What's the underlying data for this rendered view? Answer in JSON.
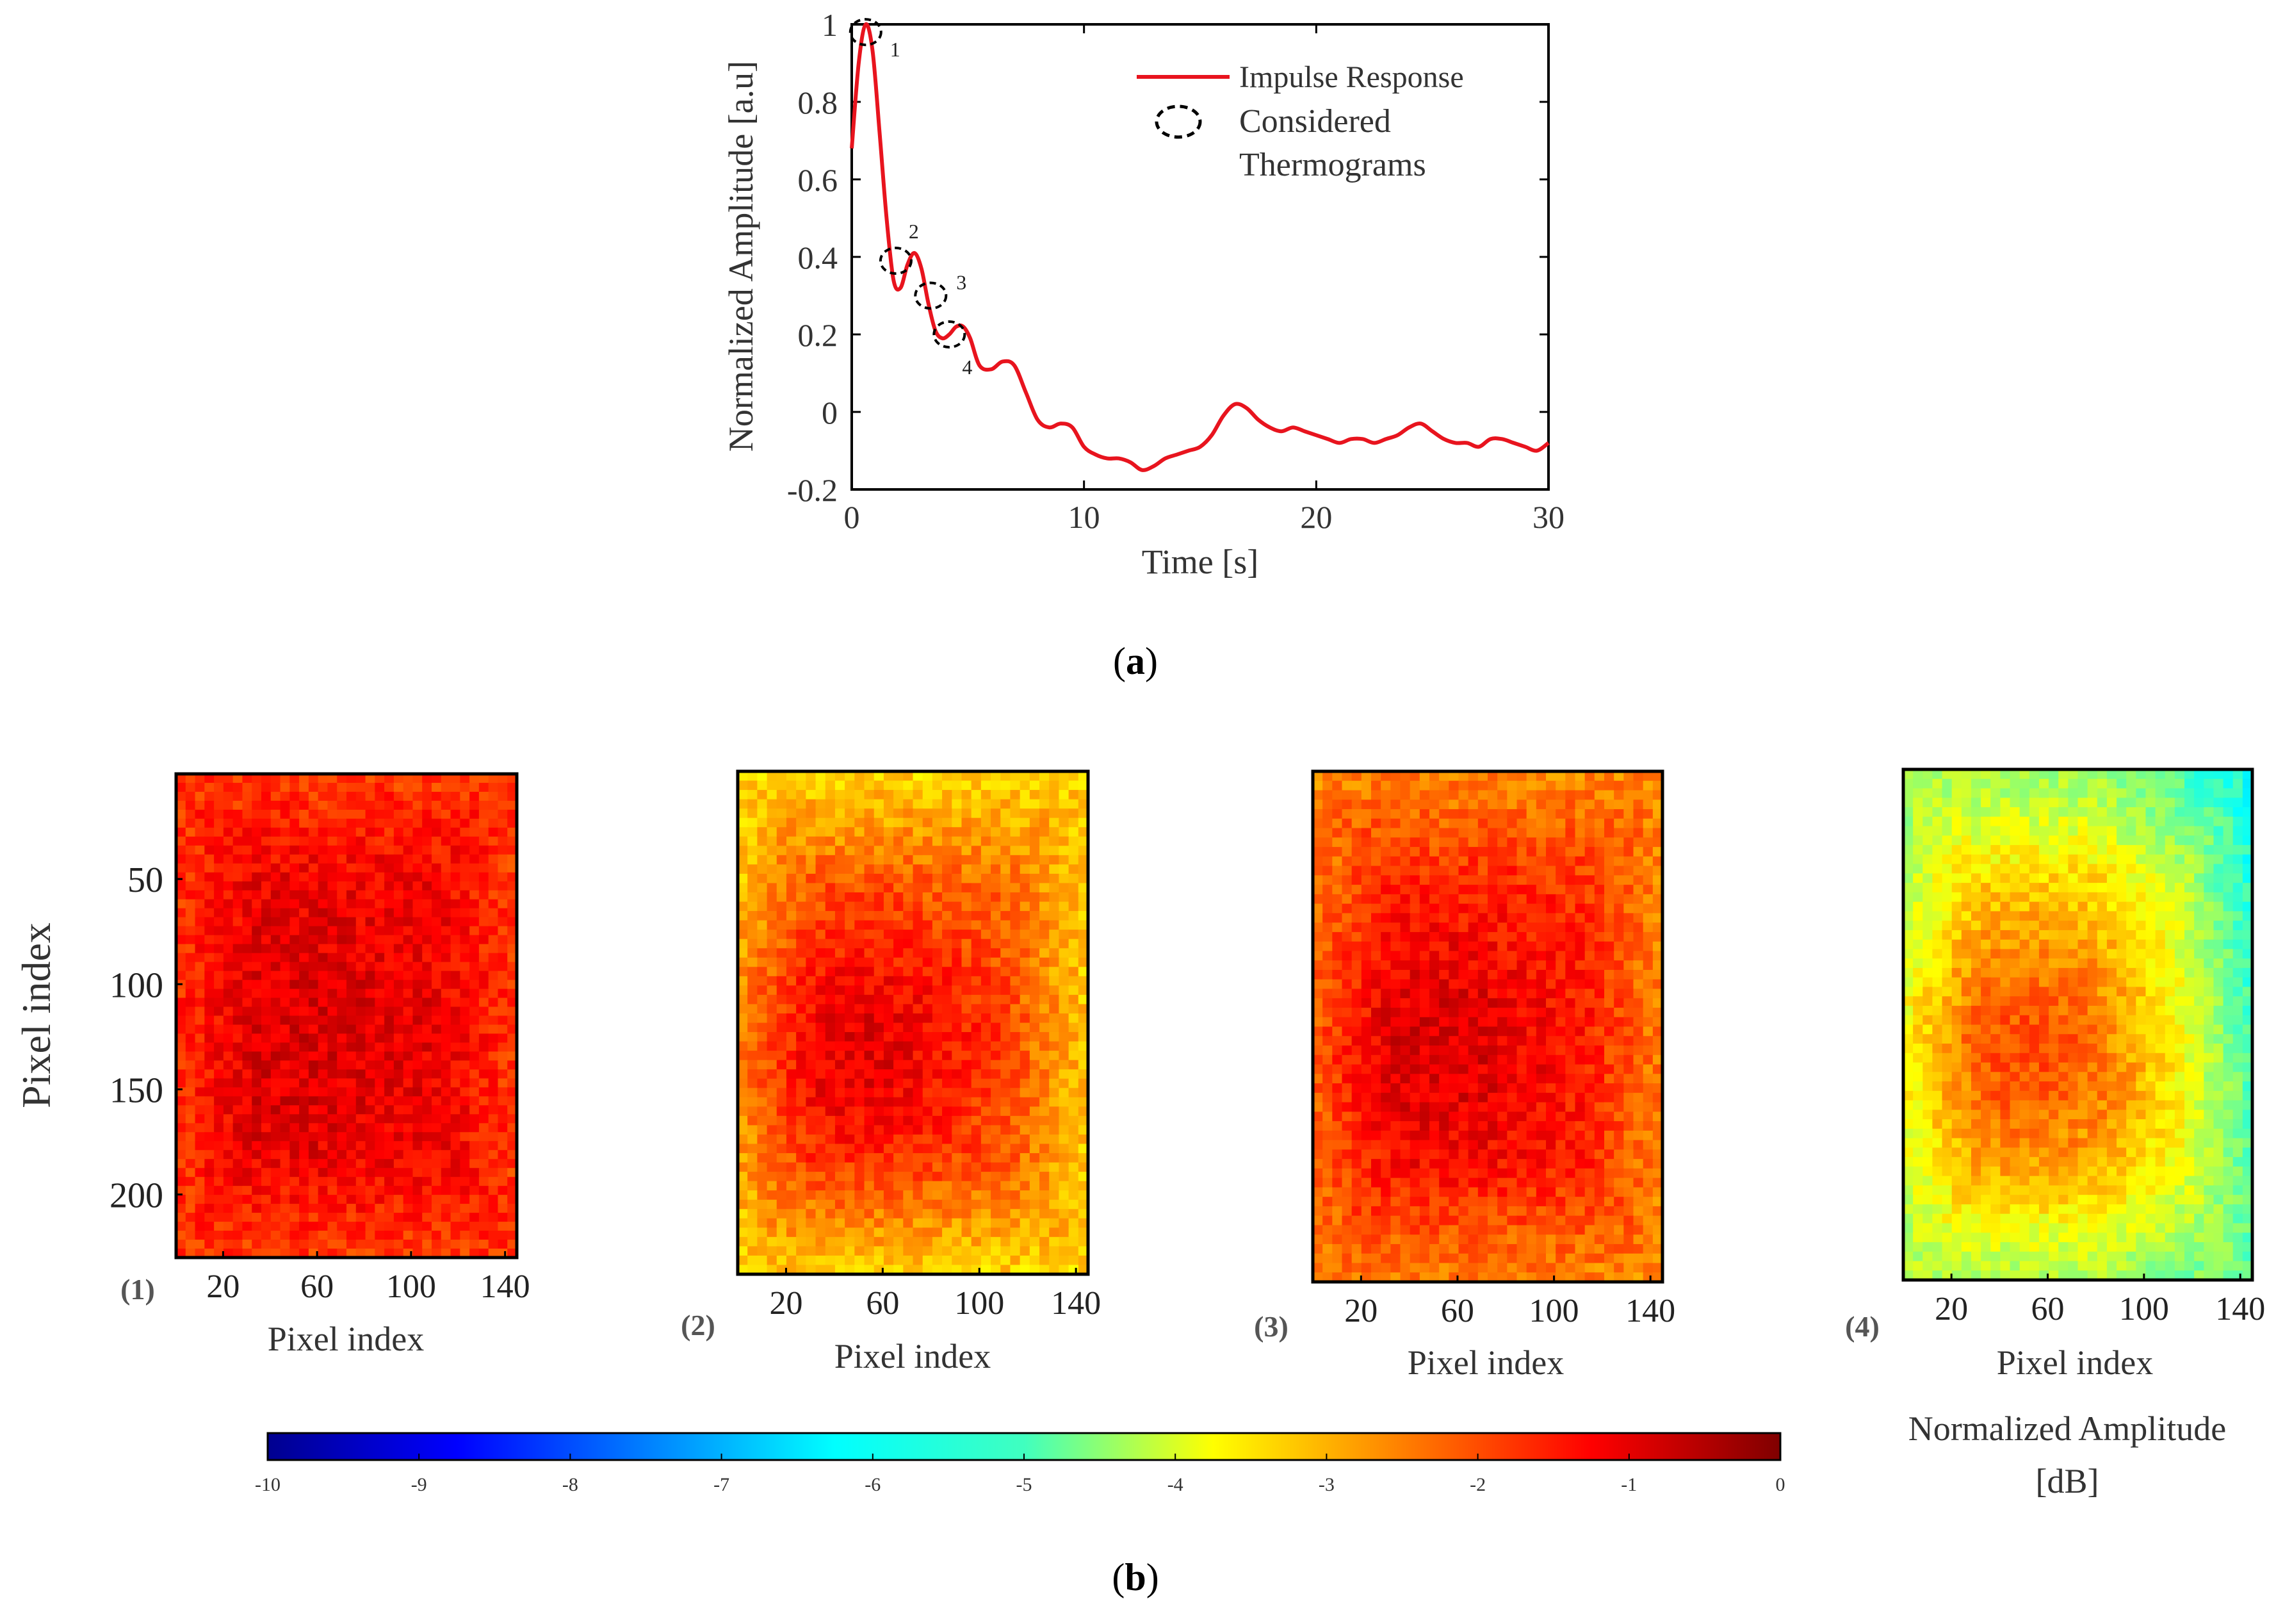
{
  "chart_data": [
    {
      "type": "line",
      "panel_label": "(a)",
      "panel_label_letter": "a",
      "xlabel": "Time [s]",
      "ylabel": "Normalized Amplitude [a.u]",
      "xlim": [
        0,
        30
      ],
      "ylim": [
        -0.2,
        1.0
      ],
      "xticks": [
        0,
        10,
        20,
        30
      ],
      "xtick_labels": [
        "0",
        "10",
        "20",
        "30"
      ],
      "yticks": [
        -0.2,
        0,
        0.2,
        0.4,
        0.6,
        0.8,
        1.0
      ],
      "ytick_labels": [
        "-0.2",
        "0",
        "0.2",
        "0.4",
        "0.6",
        "0.8",
        "1"
      ],
      "series": [
        {
          "name": "Impulse Response",
          "color": "#e8141e",
          "x": [
            0,
            0.3,
            0.6,
            0.9,
            1.2,
            1.5,
            1.8,
            2.1,
            2.4,
            2.7,
            3.0,
            3.3,
            3.6,
            3.9,
            4.2,
            4.5,
            4.8,
            5.1,
            5.5,
            6.0,
            6.5,
            7.0,
            7.5,
            8.0,
            8.5,
            9.0,
            9.5,
            10.0,
            10.5,
            11.0,
            11.5,
            12.0,
            12.5,
            13.0,
            13.5,
            14.0,
            14.5,
            15.0,
            15.5,
            16.0,
            16.5,
            17.0,
            17.5,
            18.0,
            18.5,
            19.0,
            19.5,
            20.0,
            20.5,
            21.0,
            21.5,
            22.0,
            22.5,
            23.0,
            23.5,
            24.0,
            24.5,
            25.0,
            25.5,
            26.0,
            26.5,
            27.0,
            27.5,
            28.0,
            28.5,
            29.0,
            29.5,
            30.0
          ],
          "y": [
            0.68,
            0.9,
            1.0,
            0.93,
            0.72,
            0.5,
            0.34,
            0.32,
            0.38,
            0.41,
            0.37,
            0.28,
            0.21,
            0.19,
            0.2,
            0.22,
            0.22,
            0.19,
            0.12,
            0.11,
            0.13,
            0.12,
            0.05,
            -0.02,
            -0.04,
            -0.03,
            -0.04,
            -0.09,
            -0.11,
            -0.12,
            -0.12,
            -0.13,
            -0.15,
            -0.14,
            -0.12,
            -0.11,
            -0.1,
            -0.09,
            -0.06,
            -0.01,
            0.02,
            0.01,
            -0.02,
            -0.04,
            -0.05,
            -0.04,
            -0.05,
            -0.06,
            -0.07,
            -0.08,
            -0.07,
            -0.07,
            -0.08,
            -0.07,
            -0.06,
            -0.04,
            -0.03,
            -0.05,
            -0.07,
            -0.08,
            -0.08,
            -0.09,
            -0.07,
            -0.07,
            -0.08,
            -0.09,
            -0.1,
            -0.08
          ]
        }
      ],
      "legend": {
        "position": "top-right",
        "line_label": "Impulse Response",
        "marker_label_line1": "Considered",
        "marker_label_line2": "Thermograms"
      },
      "annotations": [
        {
          "label": "1",
          "x": 0.6,
          "y": 0.98
        },
        {
          "label": "2",
          "x": 1.9,
          "y": 0.39
        },
        {
          "label": "3",
          "x": 3.4,
          "y": 0.3
        },
        {
          "label": "4",
          "x": 4.2,
          "y": 0.2
        }
      ]
    },
    {
      "type": "heatmap",
      "panel_label": "(b)",
      "panel_label_letter": "b",
      "xlabel": "Pixel index",
      "ylabel": "Pixel index",
      "xticks": [
        20,
        60,
        100,
        140
      ],
      "xtick_labels": [
        "20",
        "60",
        "100",
        "140"
      ],
      "yticks": [
        50,
        100,
        150,
        200
      ],
      "ytick_labels": [
        "50",
        "100",
        "150",
        "200"
      ],
      "xlim": [
        0,
        145
      ],
      "ylim": [
        0,
        230
      ],
      "maps": [
        {
          "label": "(1)",
          "mean_db": -1.2,
          "hotspot_db": -0.9,
          "edge_db": -2.0,
          "cold_corner": "none"
        },
        {
          "label": "(2)",
          "mean_db": -2.5,
          "hotspot_db": -1.0,
          "edge_db": -3.6,
          "cold_corner": "left-right edges"
        },
        {
          "label": "(3)",
          "mean_db": -1.8,
          "hotspot_db": -0.9,
          "edge_db": -2.8,
          "cold_corner": "none"
        },
        {
          "label": "(4)",
          "mean_db": -3.8,
          "hotspot_db": -2.0,
          "edge_db": -5.0,
          "cold_corner": "top-right"
        }
      ],
      "colorbar": {
        "title_line1": "Normalized Amplitude",
        "title_line2": "[dB]",
        "min": -10,
        "max": 0,
        "ticks": [
          -10,
          -9,
          -8,
          -7,
          -6,
          -5,
          -4,
          -3,
          -2,
          -1,
          0
        ],
        "tick_labels": [
          "-10",
          "-9",
          "-8",
          "-7",
          "-6",
          "-5",
          "-4",
          "-3",
          "-2",
          "-1",
          "0"
        ],
        "colormap": "jet"
      }
    }
  ]
}
